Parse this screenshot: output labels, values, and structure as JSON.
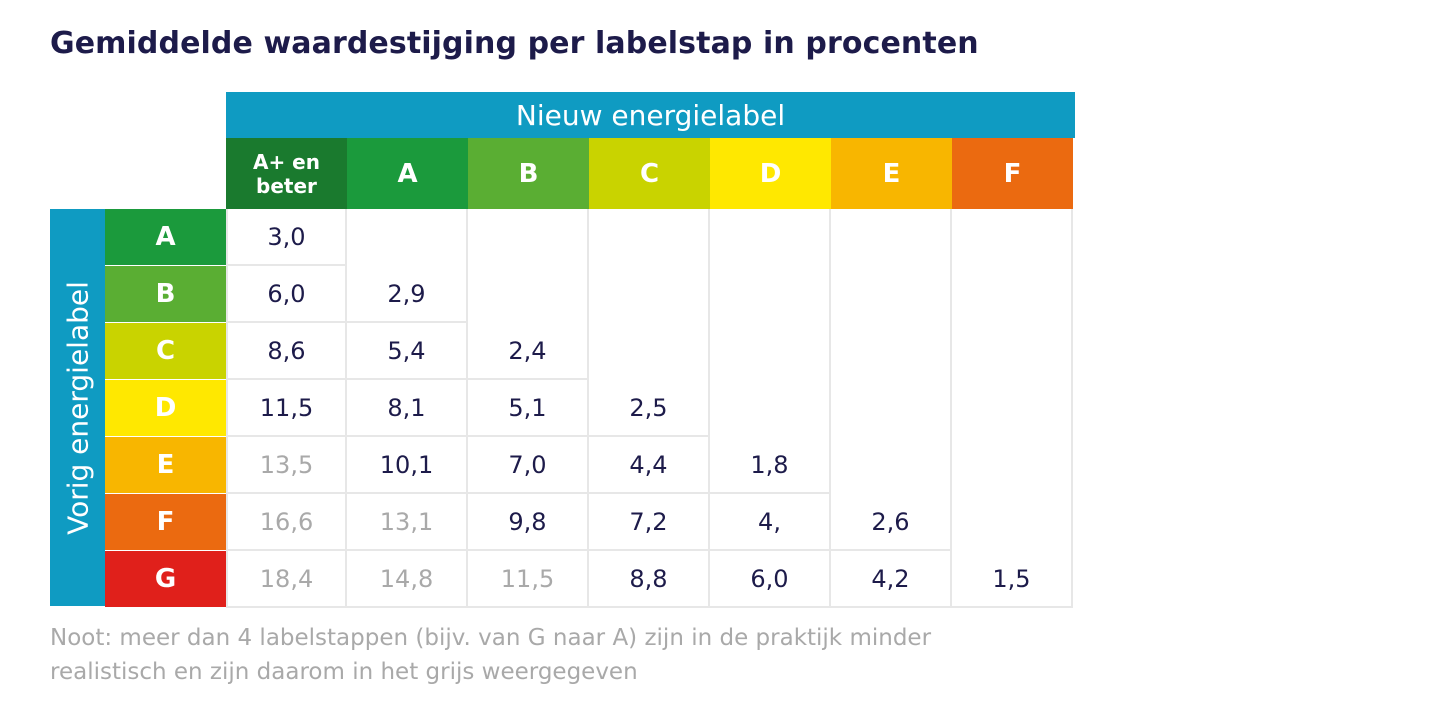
{
  "title": "Gemiddelde waardestijging per labelstap in procenten",
  "chart_data": {
    "type": "table",
    "title": "Gemiddelde waardestijging per labelstap in procenten",
    "column_group_label": "Nieuw energielabel",
    "row_group_label": "Vorig energielabel",
    "columns": [
      {
        "label": "A+ en beter",
        "color": "#1a7a2e"
      },
      {
        "label": "A",
        "color": "#1b9a3c"
      },
      {
        "label": "B",
        "color": "#5aae33"
      },
      {
        "label": "C",
        "color": "#c9d300"
      },
      {
        "label": "D",
        "color": "#ffe800"
      },
      {
        "label": "E",
        "color": "#f8b600"
      },
      {
        "label": "F",
        "color": "#eb6a10"
      }
    ],
    "rows": [
      {
        "label": "A",
        "color": "#1b9a3c",
        "values": [
          "3,0"
        ]
      },
      {
        "label": "B",
        "color": "#5aae33",
        "values": [
          "6,0",
          "2,9"
        ]
      },
      {
        "label": "C",
        "color": "#c9d300",
        "values": [
          "8,6",
          "5,4",
          "2,4"
        ]
      },
      {
        "label": "D",
        "color": "#ffe800",
        "values": [
          "11,5",
          "8,1",
          "5,1",
          "2,5"
        ]
      },
      {
        "label": "E",
        "color": "#f8b600",
        "values": [
          "13,5",
          "10,1",
          "7,0",
          "4,4",
          "1,8"
        ]
      },
      {
        "label": "F",
        "color": "#eb6a10",
        "values": [
          "16,6",
          "13,1",
          "9,8",
          "7,2",
          "4,",
          "2,6"
        ]
      },
      {
        "label": "G",
        "color": "#e0201b",
        "values": [
          "18,4",
          "14,8",
          "11,5",
          "8,8",
          "6,0",
          "4,2",
          "1,5"
        ]
      }
    ],
    "grey_threshold_steps": 4,
    "grey_color": "#a9a9a9",
    "value_color": "#1d1b4a"
  },
  "note": {
    "line1": "Noot: meer dan 4 labelstappen (bijv. van G naar A) zijn in de praktijk minder",
    "line2": "realistisch en zijn daarom in het grijs weergegeven"
  }
}
